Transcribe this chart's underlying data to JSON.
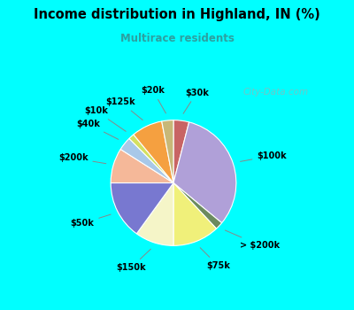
{
  "title": "Income distribution in Highland, IN (%)",
  "subtitle": "Multirace residents",
  "title_color": "#000000",
  "subtitle_color": "#2ca0a0",
  "background_color": "#00ffff",
  "chart_bg_top": "#d4f0f0",
  "chart_bg_bottom": "#c8eeda",
  "watermark": "City-Data.com",
  "labels": [
    "$30k",
    "$100k",
    "> $200k",
    "$75k",
    "$150k",
    "$50k",
    "$200k",
    "$40k",
    "$10k",
    "$125k",
    "$20k"
  ],
  "sizes": [
    4.0,
    32.0,
    2.0,
    12.0,
    10.0,
    15.0,
    9.0,
    3.5,
    1.5,
    8.0,
    3.0
  ],
  "colors": [
    "#c86464",
    "#b0a0d8",
    "#6b8b5e",
    "#f0f07a",
    "#f5f5c8",
    "#7878d0",
    "#f5b899",
    "#a8c8e8",
    "#d4e060",
    "#f5a040",
    "#c8b878"
  ],
  "startangle": 90,
  "fig_width": 4.0,
  "fig_height": 3.5,
  "dpi": 100
}
